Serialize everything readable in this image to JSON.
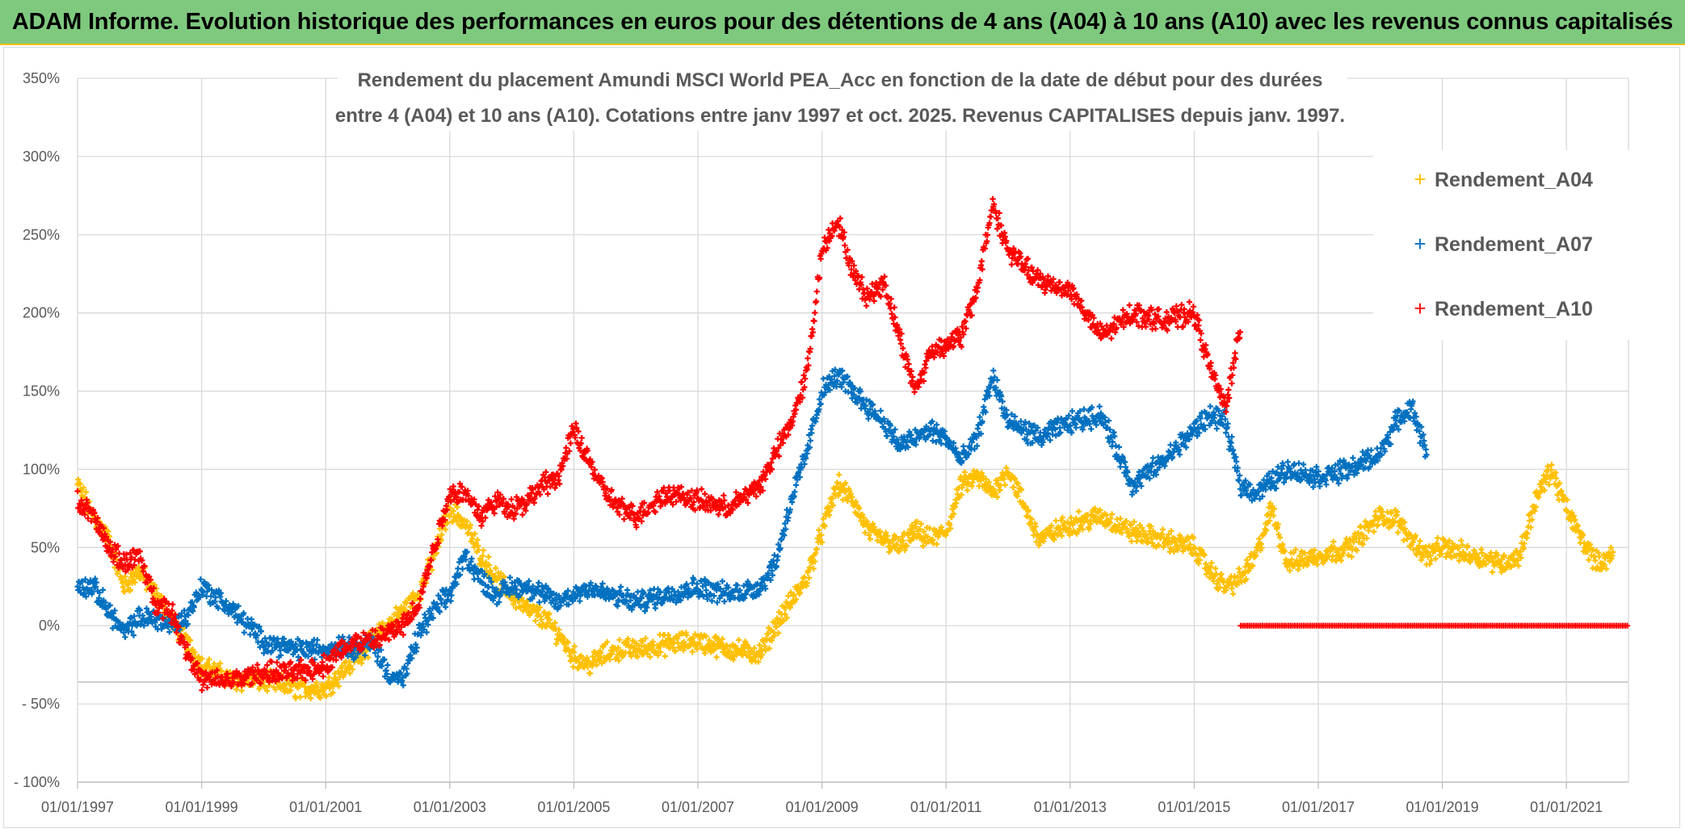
{
  "header": {
    "banner_title": "ADAM Informe. Evolution historique des performances en euros pour des détentions de 4 ans (A04) à 10 ans (A10) avec les revenus connus capitalisés"
  },
  "colors": {
    "banner_bg": "#7fc97f",
    "A04": "#ffc000",
    "A07": "#0070c0",
    "A10": "#ff0000",
    "grid": "#d9d9d9",
    "text": "#595959"
  },
  "chart_data": {
    "type": "scatter",
    "title_line1": "Rendement du placement Amundi MSCI World PEA_Acc en fonction de la date de début pour des durées",
    "title_line2": "entre 4 (A04) et 10 ans (A10). Cotations entre janv 1997 et oct. 2025. Revenus CAPITALISES depuis janv. 1997.",
    "x_tick_labels": [
      "01/01/1997",
      "01/01/1999",
      "01/01/2001",
      "01/01/2003",
      "01/01/2005",
      "01/01/2007",
      "01/01/2009",
      "01/01/2011",
      "01/01/2013",
      "01/01/2015",
      "01/01/2017",
      "01/01/2019",
      "01/01/2021"
    ],
    "y_tick_labels": [
      "350%",
      "300%",
      "250%",
      "200%",
      "150%",
      "100%",
      "50%",
      "0%",
      "- 50%",
      "- 100%"
    ],
    "xlim": [
      1997.0,
      2022.0
    ],
    "ylim": [
      -100,
      350
    ],
    "grid": true,
    "legend_position": "top-right",
    "marker": "plus",
    "series": [
      {
        "name": "Rendement_A04",
        "x": [
          1997.0,
          1997.25,
          1997.5,
          1997.75,
          1998.0,
          1998.25,
          1998.5,
          1998.75,
          1999.0,
          1999.5,
          2000.0,
          2000.5,
          2001.0,
          2001.25,
          2001.5,
          2001.75,
          2002.0,
          2002.25,
          2002.5,
          2002.75,
          2003.0,
          2003.25,
          2003.5,
          2003.75,
          2004.0,
          2004.25,
          2004.5,
          2004.75,
          2005.0,
          2005.25,
          2005.5,
          2005.75,
          2006.0,
          2006.5,
          2007.0,
          2007.5,
          2008.0,
          2008.25,
          2008.5,
          2008.75,
          2009.0,
          2009.25,
          2009.5,
          2009.75,
          2010.0,
          2010.25,
          2010.5,
          2010.75,
          2011.0,
          2011.25,
          2011.5,
          2011.75,
          2012.0,
          2012.5,
          2013.0,
          2013.5,
          2014.0,
          2014.5,
          2015.0,
          2015.25,
          2015.5,
          2015.75,
          2016.0,
          2016.25,
          2016.5,
          2017.0,
          2017.5,
          2018.0,
          2018.25,
          2018.5,
          2018.75,
          2019.0,
          2019.5,
          2020.0,
          2020.25,
          2020.5,
          2020.75,
          2021.0,
          2021.25,
          2021.5,
          2021.75
        ],
        "y": [
          90,
          70,
          55,
          25,
          35,
          20,
          5,
          -10,
          -25,
          -35,
          -35,
          -40,
          -40,
          -30,
          -20,
          -10,
          0,
          10,
          20,
          45,
          75,
          65,
          45,
          30,
          20,
          10,
          5,
          -5,
          -20,
          -25,
          -18,
          -15,
          -15,
          -12,
          -10,
          -15,
          -18,
          0,
          15,
          30,
          60,
          90,
          80,
          60,
          55,
          50,
          60,
          55,
          60,
          90,
          95,
          85,
          100,
          55,
          65,
          70,
          60,
          55,
          50,
          35,
          25,
          30,
          45,
          75,
          40,
          45,
          50,
          70,
          68,
          55,
          45,
          50,
          45,
          40,
          45,
          80,
          100,
          75,
          55,
          40,
          45
        ]
      },
      {
        "name": "Rendement_A07",
        "x": [
          1997.0,
          1997.25,
          1997.5,
          1997.75,
          1998.0,
          1998.25,
          1998.5,
          1998.75,
          1999.0,
          1999.5,
          2000.0,
          2000.5,
          2001.0,
          2001.25,
          2001.5,
          2001.75,
          2002.0,
          2002.25,
          2002.5,
          2002.75,
          2003.0,
          2003.25,
          2003.5,
          2003.75,
          2004.0,
          2004.25,
          2004.5,
          2004.75,
          2005.0,
          2005.25,
          2005.5,
          2005.75,
          2006.0,
          2006.5,
          2007.0,
          2007.5,
          2008.0,
          2008.25,
          2008.5,
          2008.75,
          2009.0,
          2009.25,
          2009.5,
          2009.75,
          2010.0,
          2010.25,
          2010.5,
          2010.75,
          2011.0,
          2011.25,
          2011.5,
          2011.75,
          2012.0,
          2012.5,
          2013.0,
          2013.5,
          2014.0,
          2014.5,
          2015.0,
          2015.25,
          2015.5,
          2015.75,
          2016.0,
          2016.5,
          2017.0,
          2017.5,
          2018.0,
          2018.25,
          2018.5,
          2018.75
        ],
        "y": [
          25,
          25,
          10,
          -5,
          5,
          5,
          0,
          5,
          25,
          10,
          -10,
          -15,
          -15,
          -12,
          -15,
          -10,
          -30,
          -35,
          -5,
          10,
          20,
          45,
          30,
          20,
          25,
          25,
          20,
          15,
          20,
          25,
          20,
          18,
          15,
          20,
          25,
          20,
          25,
          40,
          80,
          110,
          150,
          160,
          150,
          140,
          130,
          115,
          120,
          125,
          120,
          105,
          120,
          160,
          130,
          120,
          130,
          135,
          90,
          105,
          125,
          135,
          130,
          90,
          85,
          100,
          95,
          100,
          110,
          130,
          140,
          110
        ]
      },
      {
        "name": "Rendement_A10",
        "x": [
          1997.0,
          1997.25,
          1997.5,
          1997.75,
          1998.0,
          1998.25,
          1998.5,
          1998.75,
          1999.0,
          1999.5,
          2000.0,
          2000.5,
          2001.0,
          2001.25,
          2001.5,
          2001.75,
          2002.0,
          2002.25,
          2002.5,
          2002.75,
          2003.0,
          2003.25,
          2003.5,
          2003.75,
          2004.0,
          2004.25,
          2004.5,
          2004.75,
          2005.0,
          2005.25,
          2005.5,
          2005.75,
          2006.0,
          2006.5,
          2007.0,
          2007.5,
          2008.0,
          2008.25,
          2008.5,
          2008.75,
          2009.0,
          2009.25,
          2009.5,
          2009.75,
          2010.0,
          2010.25,
          2010.5,
          2010.75,
          2011.0,
          2011.25,
          2011.5,
          2011.75,
          2012.0,
          2012.5,
          2013.0,
          2013.5,
          2014.0,
          2014.5,
          2015.0,
          2015.25,
          2015.5,
          2015.75
        ],
        "y": [
          80,
          70,
          50,
          40,
          45,
          15,
          10,
          -15,
          -35,
          -35,
          -30,
          -30,
          -25,
          -15,
          -10,
          -10,
          -5,
          0,
          15,
          50,
          85,
          85,
          70,
          80,
          75,
          80,
          90,
          95,
          125,
          105,
          85,
          75,
          70,
          85,
          80,
          75,
          90,
          110,
          130,
          160,
          240,
          260,
          225,
          210,
          220,
          185,
          150,
          175,
          180,
          185,
          215,
          270,
          240,
          220,
          215,
          185,
          200,
          195,
          200,
          165,
          140,
          190
        ]
      },
      {
        "name": "",
        "x": [
          2015.75,
          2022.0
        ],
        "y": [
          0,
          0
        ]
      }
    ]
  }
}
